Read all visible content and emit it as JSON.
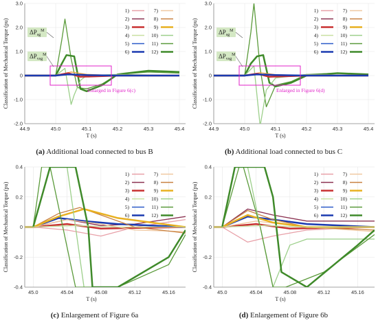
{
  "chart_data": [
    {
      "type": "line",
      "panel": "a",
      "caption_letter": "(a)",
      "caption_text": "Additional load connected to bus B",
      "ylabel": "Classification of Mechanical Torque (pu)",
      "xlabel": "T (s)",
      "xlim": [
        44.9,
        45.42
      ],
      "ylim": [
        -2.0,
        3.0
      ],
      "xticks": [
        "44.9",
        "45.0",
        "45.1",
        "45.2",
        "45.3",
        "45.4"
      ],
      "yticks": [
        "-2.0",
        "-1.0",
        "0",
        "1.0",
        "2.0",
        "3.0"
      ],
      "annotation": "Enlarged in Figure 6(c)",
      "callouts": [
        {
          "main": "ΔP",
          "sub": "sg",
          "sup": "M"
        },
        {
          "main": "ΔP",
          "sub": "vsg",
          "sup": "M"
        }
      ],
      "legend": [
        "1)",
        "2)",
        "3)",
        "4)",
        "5)",
        "6)",
        "7)",
        "8)",
        "9)",
        "10)",
        "11)",
        "12)"
      ],
      "series": [
        {
          "name": "11)",
          "color": "#5a9a3a",
          "x": [
            44.9,
            45.0,
            45.02,
            45.03,
            45.05,
            45.07,
            45.1,
            45.15,
            45.2,
            45.3,
            45.4
          ],
          "values": [
            0,
            0,
            1.5,
            2.35,
            0.7,
            -0.5,
            -0.55,
            -0.35,
            0.05,
            0.15,
            0.1
          ]
        },
        {
          "name": "12)",
          "color": "#3f8a2a",
          "x": [
            44.9,
            45.0,
            45.02,
            45.035,
            45.06,
            45.08,
            45.1,
            45.15,
            45.2,
            45.3,
            45.4
          ],
          "values": [
            0,
            0,
            0.5,
            0.85,
            0.8,
            -0.55,
            -0.65,
            -0.4,
            0.05,
            0.2,
            0.15
          ]
        },
        {
          "name": "10)",
          "color": "#9ccf8a",
          "x": [
            44.9,
            45.0,
            45.03,
            45.05,
            45.06,
            45.08,
            45.1,
            45.2,
            45.4
          ],
          "values": [
            0,
            0,
            0.3,
            -1.2,
            -0.8,
            -0.2,
            0.0,
            0.05,
            0.0
          ]
        },
        {
          "name": "7)",
          "color": "#e8a040",
          "x": [
            44.9,
            45.0,
            45.05,
            45.1,
            45.2,
            45.4
          ],
          "values": [
            0,
            0,
            0.15,
            0.05,
            0.0,
            0.0
          ]
        },
        {
          "name": "3)",
          "color": "#c83030",
          "x": [
            44.9,
            45.0,
            45.04,
            45.08,
            45.2,
            45.4
          ],
          "values": [
            0,
            0,
            0.1,
            -0.05,
            0.0,
            0.0
          ]
        },
        {
          "name": "6)",
          "color": "#1a3ab0",
          "x": [
            44.9,
            45.0,
            45.04,
            45.1,
            45.2,
            45.4
          ],
          "values": [
            0,
            0,
            0.05,
            0.02,
            0.0,
            0.0
          ]
        }
      ]
    },
    {
      "type": "line",
      "panel": "b",
      "caption_letter": "(b)",
      "caption_text": "Additional load connected to bus C",
      "ylabel": "Classification of Mechanical Torque (pu)",
      "xlabel": "T (s)",
      "xlim": [
        44.9,
        45.42
      ],
      "ylim": [
        -2.0,
        3.0
      ],
      "xticks": [
        "44.9",
        "45.0",
        "45.1",
        "45.2",
        "45.3",
        "45.4"
      ],
      "yticks": [
        "-2.0",
        "-1.0",
        "0",
        "1.0",
        "2.0",
        "3.0"
      ],
      "annotation": "Enlarged in Figure 6(d)",
      "callouts": [
        {
          "main": "ΔP",
          "sub": "sg",
          "sup": "M"
        },
        {
          "main": "ΔP",
          "sub": "vsg",
          "sup": "M"
        }
      ],
      "legend": [
        "1)",
        "2)",
        "3)",
        "4)",
        "5)",
        "6)",
        "7)",
        "8)",
        "9)",
        "10)",
        "11)",
        "12)"
      ],
      "series": [
        {
          "name": "11)",
          "color": "#5a9a3a",
          "x": [
            44.9,
            45.0,
            45.02,
            45.03,
            45.05,
            45.07,
            45.1,
            45.15,
            45.2,
            45.3,
            45.4
          ],
          "values": [
            0,
            0,
            1.8,
            3.0,
            0.3,
            -1.3,
            -0.4,
            -0.25,
            0.05,
            0.1,
            0.05
          ]
        },
        {
          "name": "12)",
          "color": "#3f8a2a",
          "x": [
            44.9,
            45.0,
            45.02,
            45.04,
            45.06,
            45.08,
            45.1,
            45.15,
            45.2,
            45.3,
            45.4
          ],
          "values": [
            0,
            0,
            0.5,
            0.8,
            0.85,
            -0.3,
            -0.45,
            -0.3,
            0.0,
            0.1,
            0.05
          ]
        },
        {
          "name": "10)",
          "color": "#9ccf8a",
          "x": [
            44.9,
            45.0,
            45.03,
            45.05,
            45.07,
            45.1,
            45.2,
            45.4
          ],
          "values": [
            0,
            0,
            0.4,
            -2.1,
            -0.6,
            -0.1,
            0.05,
            0.0
          ]
        },
        {
          "name": "7)",
          "color": "#e8a040",
          "x": [
            44.9,
            45.0,
            45.05,
            45.1,
            45.2,
            45.4
          ],
          "values": [
            0,
            0,
            0.12,
            0.04,
            0.0,
            0.0
          ]
        },
        {
          "name": "3)",
          "color": "#c83030",
          "x": [
            44.9,
            45.0,
            45.04,
            45.08,
            45.2,
            45.4
          ],
          "values": [
            0,
            0,
            0.08,
            -0.05,
            0.0,
            0.0
          ]
        },
        {
          "name": "6)",
          "color": "#1a3ab0",
          "x": [
            44.9,
            45.0,
            45.04,
            45.1,
            45.2,
            45.4
          ],
          "values": [
            0,
            0,
            0.05,
            0.02,
            0.0,
            0.0
          ]
        }
      ]
    },
    {
      "type": "line",
      "panel": "c",
      "caption_letter": "(c)",
      "caption_text": "Enlargement of Figure 6a",
      "ylabel": "Classification of Mechanical Torque (pu)",
      "xlabel": "T (s)",
      "xlim": [
        44.99,
        45.18
      ],
      "ylim": [
        -0.4,
        0.4
      ],
      "xticks": [
        "45.0",
        "45.04",
        "45.08",
        "45.12",
        "45.16"
      ],
      "yticks": [
        "-0.4",
        "-0.2",
        "0",
        "0.2",
        "0.4"
      ],
      "legend": [
        "1)",
        "2)",
        "3)",
        "4)",
        "5)",
        "6)",
        "7)",
        "8)",
        "9)",
        "10)",
        "11)",
        "12)"
      ],
      "series": [
        {
          "name": "1)",
          "color": "#e8a0a8",
          "x": [
            44.99,
            45.0,
            45.04,
            45.08,
            45.12,
            45.18
          ],
          "values": [
            0,
            0,
            -0.02,
            -0.06,
            0.0,
            0.05
          ]
        },
        {
          "name": "2)",
          "color": "#8a3050",
          "x": [
            44.99,
            45.0,
            45.04,
            45.08,
            45.12,
            45.18
          ],
          "values": [
            0,
            0,
            0.05,
            0.01,
            0.02,
            0.07
          ]
        },
        {
          "name": "3)",
          "color": "#c83030",
          "x": [
            44.99,
            45.0,
            45.04,
            45.08,
            45.18
          ],
          "values": [
            0,
            0,
            0.02,
            -0.01,
            0.0
          ]
        },
        {
          "name": "5)",
          "color": "#2a5ac8",
          "x": [
            44.99,
            45.0,
            45.03,
            45.06,
            45.1,
            45.18
          ],
          "values": [
            0,
            0,
            0.06,
            0.04,
            0.02,
            0.0
          ]
        },
        {
          "name": "6)",
          "color": "#1a3ab0",
          "x": [
            44.99,
            45.0,
            45.03,
            45.06,
            45.1,
            45.18
          ],
          "values": [
            0,
            0,
            0.06,
            0.04,
            0.02,
            0.0
          ]
        },
        {
          "name": "7)",
          "color": "#f0c8a0",
          "x": [
            44.99,
            45.0,
            45.04,
            45.08,
            45.12,
            45.18
          ],
          "values": [
            0,
            0,
            0.05,
            0.02,
            -0.02,
            -0.03
          ]
        },
        {
          "name": "8)",
          "color": "#c88040",
          "x": [
            44.99,
            45.0,
            45.03,
            45.055,
            45.08,
            45.12,
            45.18
          ],
          "values": [
            0,
            0,
            0.09,
            0.13,
            0.08,
            0.0,
            -0.04
          ]
        },
        {
          "name": "9)",
          "color": "#e8b020",
          "x": [
            44.99,
            45.0,
            45.03,
            45.06,
            45.1,
            45.18
          ],
          "values": [
            0,
            0,
            0.07,
            0.12,
            0.06,
            0.0
          ]
        },
        {
          "name": "10)",
          "color": "#9ccf8a",
          "x": [
            45.04,
            45.05,
            45.06,
            45.08
          ],
          "values": [
            0.4,
            0.0,
            -0.4,
            -0.4
          ]
        },
        {
          "name": "11)",
          "color": "#5a9a3a",
          "x": [
            45.0,
            45.005,
            45.01,
            45.02,
            45.05,
            45.1,
            45.16,
            45.18
          ],
          "values": [
            0,
            0.2,
            0.4,
            0.4,
            -0.4,
            -0.4,
            -0.25,
            -0.05
          ]
        },
        {
          "name": "12)",
          "color": "#3f8a2a",
          "x": [
            45.0,
            45.02,
            45.05,
            45.065,
            45.07,
            45.1,
            45.16,
            45.18
          ],
          "values": [
            0,
            0.4,
            0.4,
            0.0,
            -0.4,
            -0.4,
            -0.2,
            -0.02
          ]
        },
        {
          "name": "4)",
          "color": "#c8e0a0",
          "x": [
            44.99,
            45.0,
            45.05,
            45.1,
            45.18
          ],
          "values": [
            0,
            0,
            0.01,
            0.0,
            0.0
          ]
        }
      ]
    },
    {
      "type": "line",
      "panel": "d",
      "caption_letter": "(d)",
      "caption_text": "Enlargement of Figure 6b",
      "ylabel": "Classification of Mechanical Torque (pu)",
      "xlabel": "T (s)",
      "xlim": [
        44.99,
        45.18
      ],
      "ylim": [
        -0.4,
        0.4
      ],
      "xticks": [
        "45.0",
        "45.04",
        "45.08",
        "45.12",
        "45.16"
      ],
      "yticks": [
        "-0.4",
        "-0.2",
        "0",
        "0.2",
        "0.4"
      ],
      "legend": [
        "1)",
        "2)",
        "3)",
        "4)",
        "5)",
        "6)",
        "7)",
        "8)",
        "9)",
        "10)",
        "11)",
        "12)"
      ],
      "series": [
        {
          "name": "1)",
          "color": "#e8a0a8",
          "x": [
            44.99,
            45.0,
            45.03,
            45.06,
            45.1,
            45.18
          ],
          "values": [
            0,
            0,
            -0.1,
            -0.06,
            -0.02,
            0.0
          ]
        },
        {
          "name": "2)",
          "color": "#8a3050",
          "x": [
            44.99,
            45.0,
            45.03,
            45.06,
            45.1,
            45.18
          ],
          "values": [
            0,
            0,
            0.12,
            0.08,
            0.04,
            0.04
          ]
        },
        {
          "name": "3)",
          "color": "#c83030",
          "x": [
            44.99,
            45.0,
            45.04,
            45.08,
            45.18
          ],
          "values": [
            0,
            0,
            0.02,
            -0.01,
            0.0
          ]
        },
        {
          "name": "5)",
          "color": "#2a5ac8",
          "x": [
            44.99,
            45.0,
            45.03,
            45.06,
            45.1,
            45.18
          ],
          "values": [
            0,
            0,
            0.07,
            0.05,
            0.02,
            0.0
          ]
        },
        {
          "name": "6)",
          "color": "#1a3ab0",
          "x": [
            44.99,
            45.0,
            45.03,
            45.06,
            45.1,
            45.18
          ],
          "values": [
            0,
            0,
            0.07,
            0.05,
            0.02,
            0.0
          ]
        },
        {
          "name": "7)",
          "color": "#f0c8a0",
          "x": [
            44.99,
            45.0,
            45.04,
            45.1,
            45.18
          ],
          "values": [
            0,
            0,
            0.04,
            0.0,
            -0.03
          ]
        },
        {
          "name": "8)",
          "color": "#c88040",
          "x": [
            44.99,
            45.0,
            45.03,
            45.06,
            45.1,
            45.18
          ],
          "values": [
            0,
            0,
            0.11,
            0.05,
            0.0,
            -0.02
          ]
        },
        {
          "name": "9)",
          "color": "#e8b020",
          "x": [
            44.99,
            45.0,
            45.03,
            45.06,
            45.1,
            45.18
          ],
          "values": [
            0,
            0,
            0.08,
            0.03,
            0.0,
            0.0
          ]
        },
        {
          "name": "10)",
          "color": "#9ccf8a",
          "x": [
            45.03,
            45.045,
            45.06,
            45.08,
            45.1,
            45.18
          ],
          "values": [
            0.4,
            0.0,
            -0.4,
            -0.12,
            -0.08,
            -0.08
          ]
        },
        {
          "name": "11)",
          "color": "#5a9a3a",
          "x": [
            45.0,
            45.02,
            45.025,
            45.045,
            45.06,
            45.075,
            45.12,
            45.18
          ],
          "values": [
            0,
            0.4,
            0.4,
            0.0,
            -0.4,
            -0.4,
            -0.3,
            -0.05
          ]
        },
        {
          "name": "12)",
          "color": "#3f8a2a",
          "x": [
            45.0,
            45.015,
            45.05,
            45.06,
            45.07,
            45.1,
            45.16,
            45.18
          ],
          "values": [
            0,
            0.4,
            0.4,
            0.2,
            -0.3,
            -0.4,
            -0.12,
            -0.02
          ]
        },
        {
          "name": "4)",
          "color": "#c8e0a0",
          "x": [
            44.99,
            45.0,
            45.05,
            45.1,
            45.18
          ],
          "values": [
            0,
            0,
            0.01,
            0.0,
            0.0
          ]
        }
      ]
    }
  ],
  "legend_colors": [
    "#e8a0a8",
    "#8a3050",
    "#c83030",
    "#c8e0a0",
    "#2a5ac8",
    "#1a3ab0",
    "#f0c8a0",
    "#c88040",
    "#e8b020",
    "#9ccf8a",
    "#5a9a3a",
    "#3f8a2a"
  ],
  "legend_widths": [
    1,
    1,
    2.2,
    1,
    1,
    2.2,
    1,
    1,
    2.2,
    1,
    1,
    2.2
  ],
  "colors": {
    "annotation": "#e020c8",
    "grid": "#e6e6e6",
    "callout_bg": "#d4e8c4"
  }
}
